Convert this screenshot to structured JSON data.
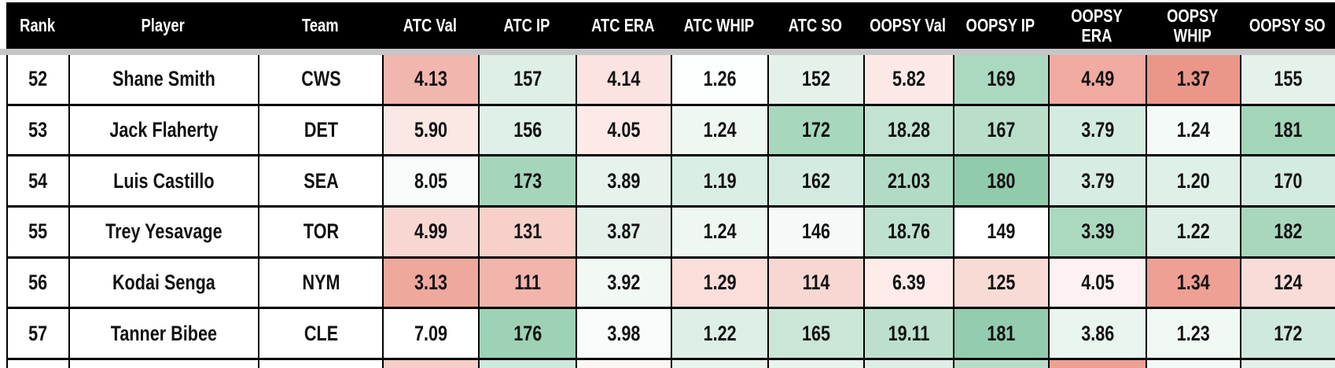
{
  "colors": {
    "header_bg": "#000000",
    "header_text": "#ffffff",
    "grid_line": "#000000",
    "separator": "#c6c6c6",
    "good_strong": "#90cbac",
    "bad_strong": "#ea978a"
  },
  "table": {
    "columns": [
      "Rank",
      "Player",
      "Team",
      "ATC Val",
      "ATC IP",
      "ATC ERA",
      "ATC WHIP",
      "ATC SO",
      "OOPSY Val",
      "OOPSY IP",
      "OOPSY ERA",
      "OOPSY WHIP",
      "OOPSY SO"
    ],
    "rows": [
      {
        "cells": [
          {
            "text": "52",
            "bg": "#ffffff"
          },
          {
            "text": "Shane Smith",
            "bg": "#ffffff"
          },
          {
            "text": "CWS",
            "bg": "#ffffff"
          },
          {
            "text": "4.13",
            "bg": "#f1b6ad"
          },
          {
            "text": "157",
            "bg": "#ddefe6"
          },
          {
            "text": "4.14",
            "bg": "#fae3e0"
          },
          {
            "text": "1.26",
            "bg": "#fdfefe"
          },
          {
            "text": "152",
            "bg": "#e4f2eb"
          },
          {
            "text": "5.82",
            "bg": "#fce9e7"
          },
          {
            "text": "169",
            "bg": "#abd9c0"
          },
          {
            "text": "4.49",
            "bg": "#f1aba0"
          },
          {
            "text": "1.37",
            "bg": "#ea978a"
          },
          {
            "text": "155",
            "bg": "#e4f2eb"
          }
        ]
      },
      {
        "cells": [
          {
            "text": "53",
            "bg": "#ffffff"
          },
          {
            "text": "Jack Flaherty",
            "bg": "#ffffff"
          },
          {
            "text": "DET",
            "bg": "#ffffff"
          },
          {
            "text": "5.90",
            "bg": "#fbe7e4"
          },
          {
            "text": "156",
            "bg": "#def0e7"
          },
          {
            "text": "4.05",
            "bg": "#fbeae8"
          },
          {
            "text": "1.24",
            "bg": "#eff7f3"
          },
          {
            "text": "172",
            "bg": "#a7d7bc"
          },
          {
            "text": "18.28",
            "bg": "#c2e3d2"
          },
          {
            "text": "167",
            "bg": "#b9dfcb"
          },
          {
            "text": "3.79",
            "bg": "#d4ebdf"
          },
          {
            "text": "1.24",
            "bg": "#f3faf7"
          },
          {
            "text": "181",
            "bg": "#a3d5b9"
          }
        ]
      },
      {
        "cells": [
          {
            "text": "54",
            "bg": "#ffffff"
          },
          {
            "text": "Luis Castillo",
            "bg": "#ffffff"
          },
          {
            "text": "SEA",
            "bg": "#ffffff"
          },
          {
            "text": "8.05",
            "bg": "#f8fbfa"
          },
          {
            "text": "173",
            "bg": "#a5d6bb"
          },
          {
            "text": "3.89",
            "bg": "#e6f3ed"
          },
          {
            "text": "1.19",
            "bg": "#d9eee4"
          },
          {
            "text": "162",
            "bg": "#d4ebdf"
          },
          {
            "text": "21.03",
            "bg": "#b2dbc5"
          },
          {
            "text": "180",
            "bg": "#90cbac"
          },
          {
            "text": "3.79",
            "bg": "#d7ece2"
          },
          {
            "text": "1.20",
            "bg": "#dff0e8"
          },
          {
            "text": "170",
            "bg": "#d4ebdf"
          }
        ]
      },
      {
        "cells": [
          {
            "text": "55",
            "bg": "#ffffff"
          },
          {
            "text": "Trey Yesavage",
            "bg": "#ffffff"
          },
          {
            "text": "TOR",
            "bg": "#ffffff"
          },
          {
            "text": "4.99",
            "bg": "#f8d7d2"
          },
          {
            "text": "131",
            "bg": "#f7d0ca"
          },
          {
            "text": "3.87",
            "bg": "#e3f1ea"
          },
          {
            "text": "1.24",
            "bg": "#eff7f3"
          },
          {
            "text": "146",
            "bg": "#f5faf8"
          },
          {
            "text": "18.76",
            "bg": "#bfe2d0"
          },
          {
            "text": "149",
            "bg": "#ffffff"
          },
          {
            "text": "3.39",
            "bg": "#abd9c0"
          },
          {
            "text": "1.22",
            "bg": "#dceee5"
          },
          {
            "text": "182",
            "bg": "#a8d7bd"
          }
        ]
      },
      {
        "cells": [
          {
            "text": "56",
            "bg": "#ffffff"
          },
          {
            "text": "Kodai Senga",
            "bg": "#ffffff"
          },
          {
            "text": "NYM",
            "bg": "#ffffff"
          },
          {
            "text": "3.13",
            "bg": "#efa89c"
          },
          {
            "text": "111",
            "bg": "#f2b5ac"
          },
          {
            "text": "3.92",
            "bg": "#f2f9f5"
          },
          {
            "text": "1.29",
            "bg": "#fbdeda"
          },
          {
            "text": "114",
            "bg": "#f8d7d2"
          },
          {
            "text": "6.39",
            "bg": "#fcebe9"
          },
          {
            "text": "125",
            "bg": "#f9dbd6"
          },
          {
            "text": "4.05",
            "bg": "#fdf2f1"
          },
          {
            "text": "1.34",
            "bg": "#eda093"
          },
          {
            "text": "124",
            "bg": "#f9dcd8"
          }
        ]
      },
      {
        "cells": [
          {
            "text": "57",
            "bg": "#ffffff"
          },
          {
            "text": "Tanner Bibee",
            "bg": "#ffffff"
          },
          {
            "text": "CLE",
            "bg": "#ffffff"
          },
          {
            "text": "7.09",
            "bg": "#ffffff"
          },
          {
            "text": "176",
            "bg": "#9dd2b4"
          },
          {
            "text": "3.98",
            "bg": "#f7fbf9"
          },
          {
            "text": "1.22",
            "bg": "#ddefe6"
          },
          {
            "text": "165",
            "bg": "#c9e6d6"
          },
          {
            "text": "19.11",
            "bg": "#bce0cd"
          },
          {
            "text": "181",
            "bg": "#93ccae"
          },
          {
            "text": "3.86",
            "bg": "#e8f4ee"
          },
          {
            "text": "1.23",
            "bg": "#f0f8f4"
          },
          {
            "text": "172",
            "bg": "#cfe9dc"
          }
        ]
      }
    ],
    "partial_row_colors": [
      "#ffffff",
      "#ffffff",
      "#ffffff",
      "#f6cdc7",
      "#cfe9dc",
      "#fdf6f5",
      "#e8f4ee",
      "#e8f4ee",
      "#ddeee6",
      "#b7ddc9",
      "#eda193",
      "#f3faf6",
      "#e2f1ea"
    ]
  }
}
